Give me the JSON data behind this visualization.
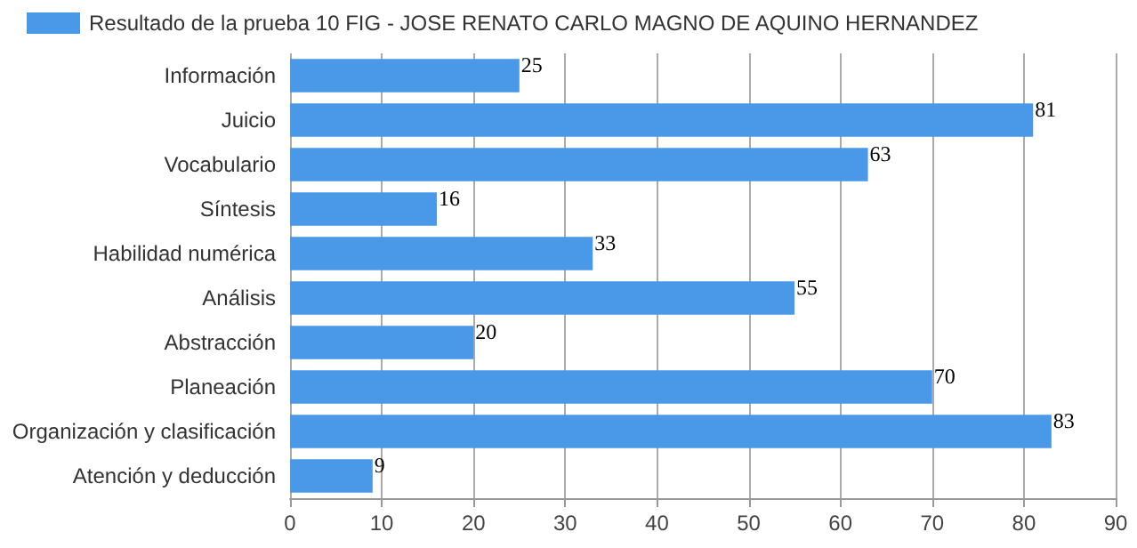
{
  "chart_data": {
    "type": "bar",
    "orientation": "horizontal",
    "categories": [
      "Información",
      "Juicio",
      "Vocabulario",
      "Síntesis",
      "Habilidad numérica",
      "Análisis",
      "Abstracción",
      "Planeación",
      "Organización y clasificación",
      "Atención y deducción"
    ],
    "series": [
      {
        "name": "Resultado de la prueba 10 FIG - JOSE RENATO CARLO MAGNO DE AQUINO HERNANDEZ",
        "color": "#4a99e9",
        "values": [
          25,
          81,
          63,
          16,
          33,
          55,
          20,
          70,
          83,
          9
        ]
      }
    ],
    "xlim": [
      0,
      90
    ],
    "xticks": [
      0,
      10,
      20,
      30,
      40,
      50,
      60,
      70,
      80,
      90
    ],
    "grid": "x",
    "legend": "top",
    "data_labels": true
  }
}
